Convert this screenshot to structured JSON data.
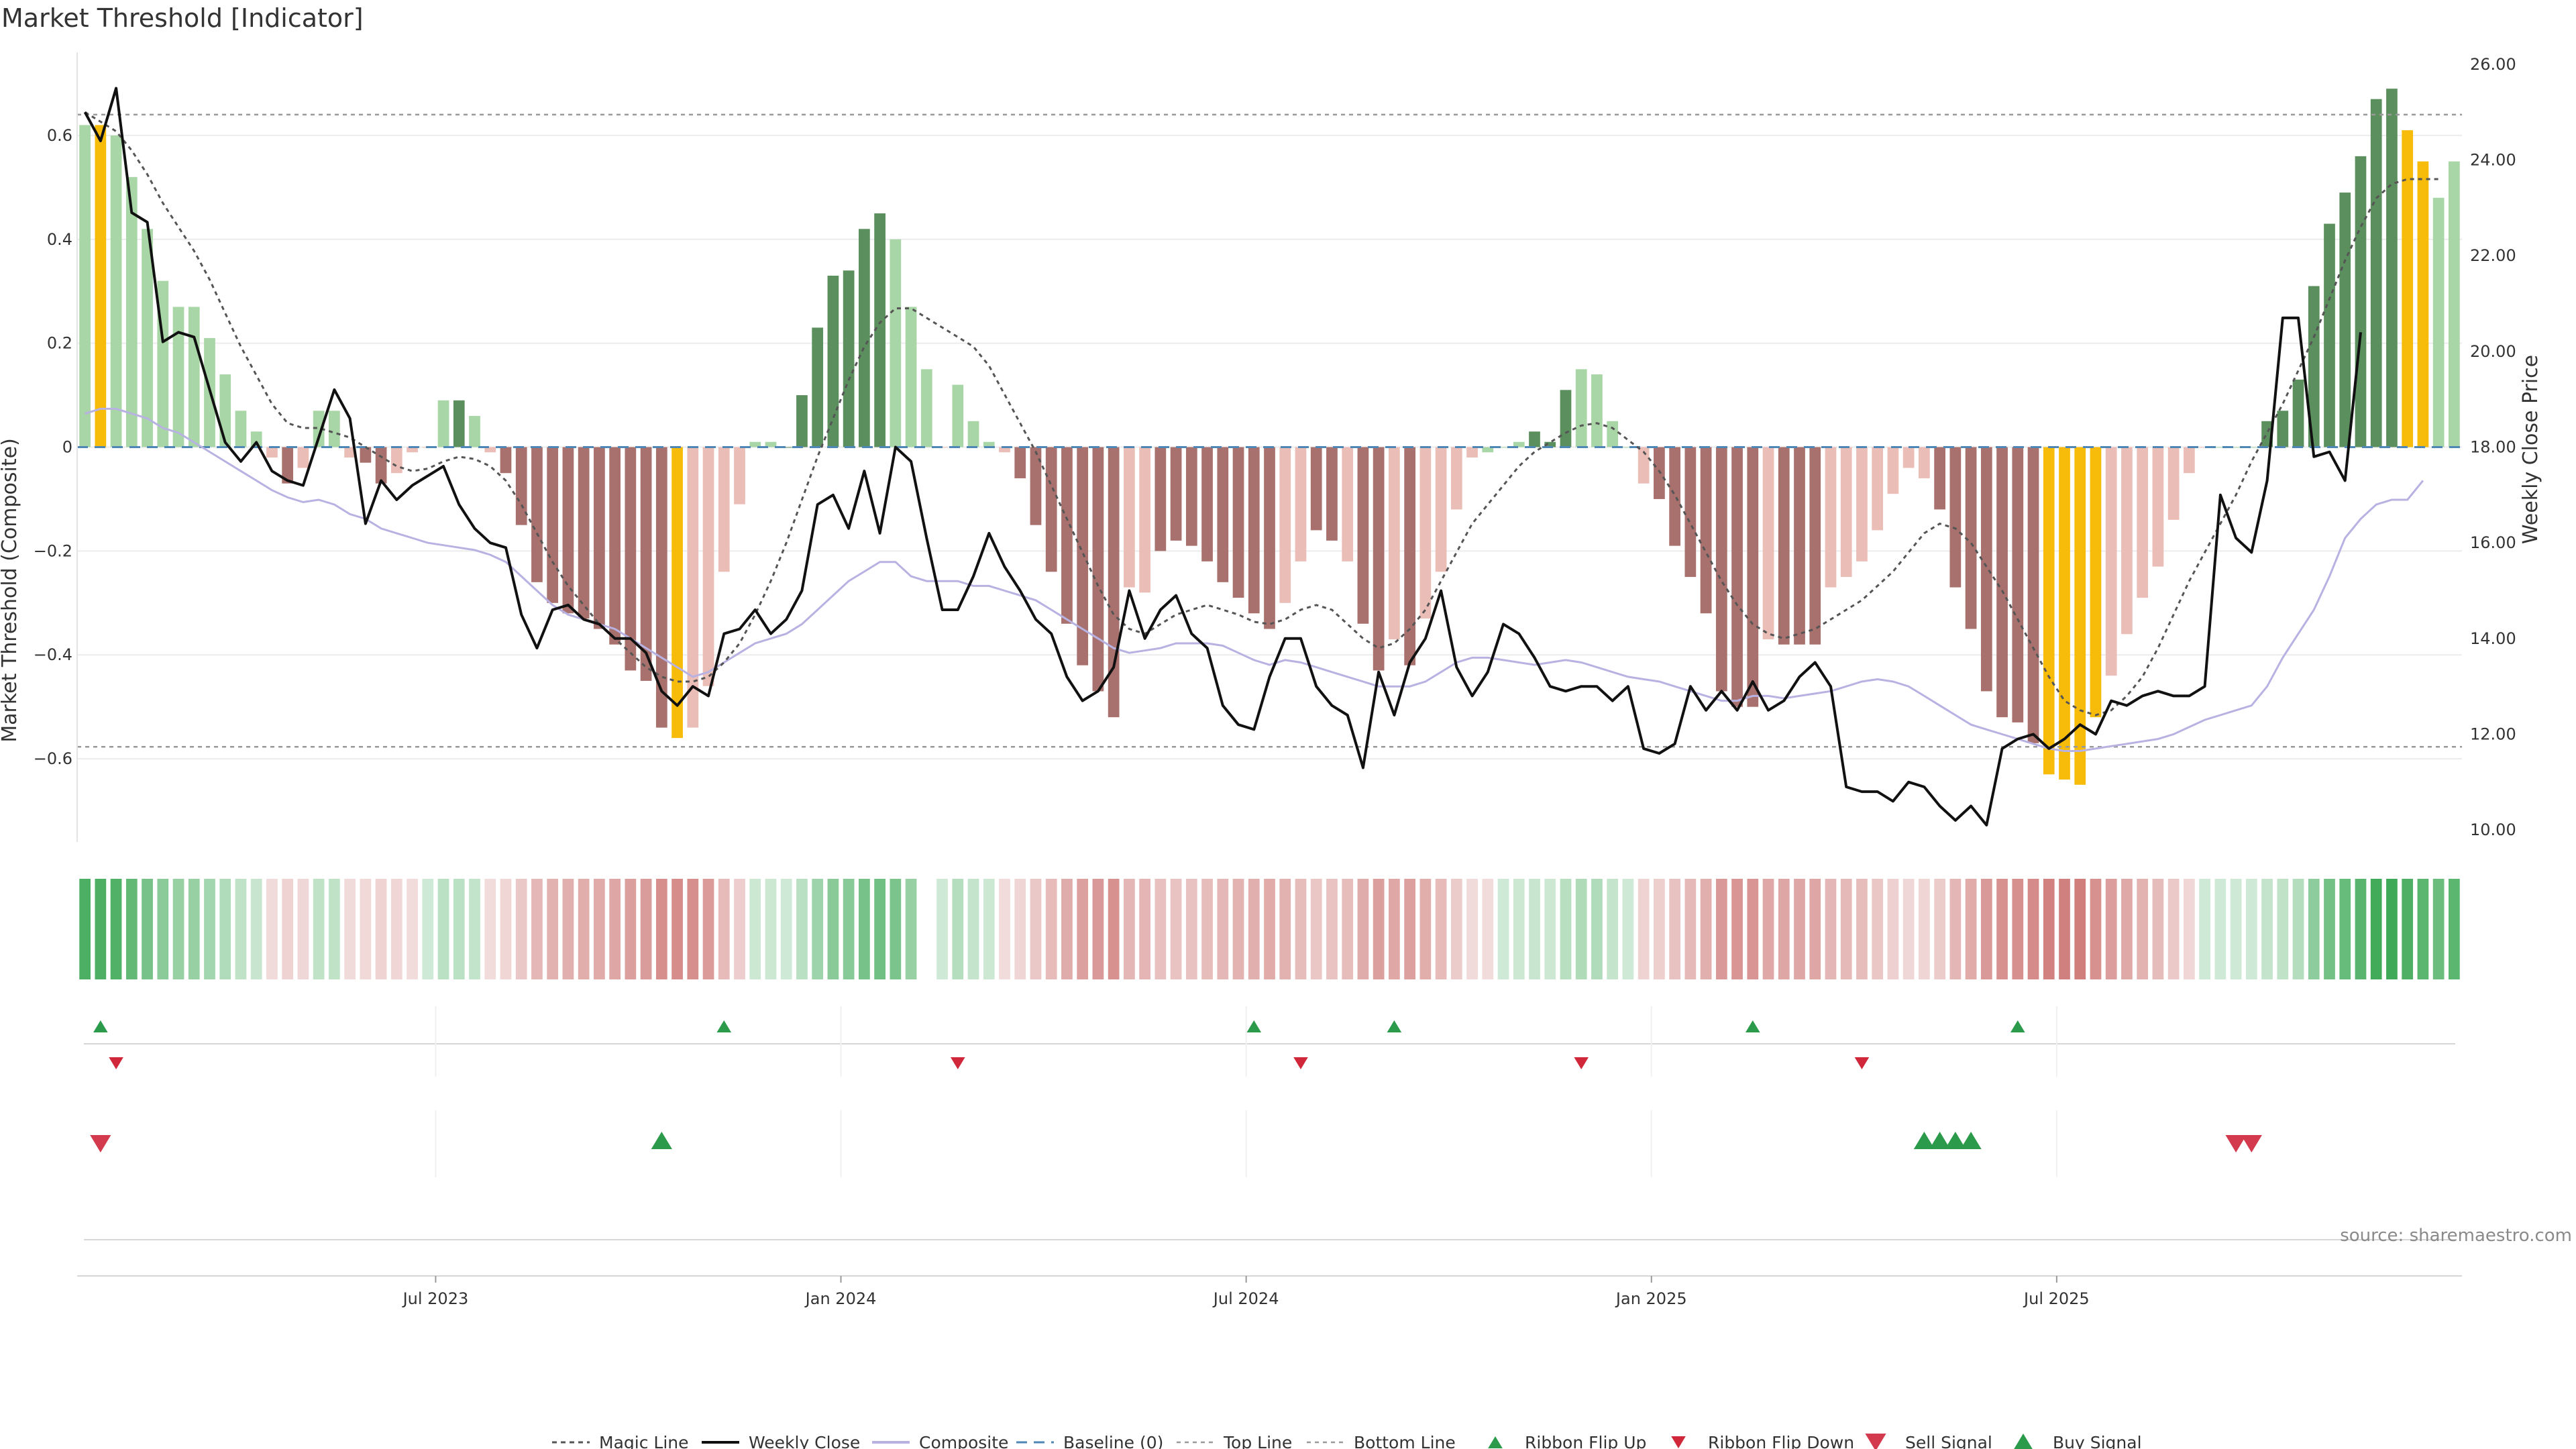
{
  "title": "Market Threshold [Indicator]",
  "source": "source: sharemaestro.com",
  "chart_data": {
    "type": "bar",
    "y_left_label": "Market Threshold (Composite)",
    "y_right_label": "Weekly Close Price",
    "y_left_ticks": [
      "0.6",
      "0.4",
      "0.2",
      "0",
      "−0.2",
      "−0.4",
      "−0.6"
    ],
    "y_right_ticks": [
      "26.00",
      "24.00",
      "22.00",
      "20.00",
      "18.00",
      "16.00",
      "14.00",
      "12.00",
      "10.00"
    ],
    "x_ticks": [
      "Jul 2023",
      "Jan 2024",
      "Jul 2024",
      "Jan 2025",
      "Jul 2025"
    ],
    "ylim_left": [
      -0.76,
      0.76
    ],
    "ylim_right": [
      9.75,
      26.25
    ],
    "top_line": 0.64,
    "bottom_line": -0.577,
    "baseline": 0,
    "colors": {
      "strong_up": "#5b8f5d",
      "weak_up": "#a9d6a6",
      "strong_down": "#a8716d",
      "weak_down": "#ebbdb7",
      "extreme": "#f7bb0a",
      "close_line": "#111111",
      "composite_line": "#b7b2e2",
      "magic_line": "#555555",
      "baseline": "#4e86b5",
      "ribbon_up": "#2b9a4a",
      "ribbon_down": "#d0283a",
      "buy": "#2b9a4a",
      "sell": "#d43a4d"
    },
    "composite": [
      0.62,
      0.62,
      0.6,
      0.52,
      0.42,
      0.32,
      0.27,
      0.27,
      0.21,
      0.14,
      0.07,
      0.03,
      -0.02,
      -0.07,
      -0.04,
      0.07,
      0.07,
      -0.02,
      -0.03,
      -0.07,
      -0.05,
      -0.01,
      0.0,
      0.09,
      0.09,
      0.06,
      -0.01,
      -0.05,
      -0.15,
      -0.26,
      -0.3,
      -0.32,
      -0.33,
      -0.35,
      -0.38,
      -0.43,
      -0.45,
      -0.54,
      -0.56,
      -0.54,
      -0.46,
      -0.24,
      -0.11,
      0.01,
      0.01,
      0.0,
      0.1,
      0.23,
      0.33,
      0.34,
      0.42,
      0.45,
      0.4,
      0.27,
      0.15,
      0.0,
      0.12,
      0.05,
      0.01,
      -0.01,
      -0.06,
      -0.15,
      -0.24,
      -0.34,
      -0.42,
      -0.47,
      -0.52,
      -0.27,
      -0.28,
      -0.2,
      -0.18,
      -0.19,
      -0.22,
      -0.26,
      -0.29,
      -0.32,
      -0.35,
      -0.3,
      -0.22,
      -0.16,
      -0.18,
      -0.22,
      -0.34,
      -0.43,
      -0.37,
      -0.42,
      -0.33,
      -0.24,
      -0.12,
      -0.02,
      -0.01,
      0.0,
      0.01,
      0.03,
      0.01,
      0.11,
      0.15,
      0.14,
      0.05,
      0.0,
      -0.07,
      -0.1,
      -0.19,
      -0.25,
      -0.32,
      -0.47,
      -0.5,
      -0.5,
      -0.37,
      -0.38,
      -0.38,
      -0.38,
      -0.27,
      -0.25,
      -0.22,
      -0.16,
      -0.09,
      -0.04,
      -0.06,
      -0.12,
      -0.27,
      -0.35,
      -0.47,
      -0.52,
      -0.53,
      -0.57,
      -0.63,
      -0.64,
      -0.65,
      -0.52,
      -0.44,
      -0.36,
      -0.29,
      -0.23,
      -0.14,
      -0.05,
      0.0,
      0.0,
      0.0,
      0.0,
      0.05,
      0.07,
      0.13,
      0.31,
      0.43,
      0.49,
      0.56,
      0.67,
      0.69,
      0.61,
      0.55,
      0.48,
      0.55
    ],
    "bar_colors": [
      "wu",
      "ex",
      "wu",
      "wu",
      "wu",
      "wu",
      "wu",
      "wu",
      "wu",
      "wu",
      "wu",
      "wu",
      "wd",
      "sd",
      "wd",
      "wu",
      "wu",
      "wd",
      "sd",
      "sd",
      "wd",
      "wd",
      "wd",
      "wu",
      "su",
      "wu",
      "wd",
      "sd",
      "sd",
      "sd",
      "sd",
      "sd",
      "sd",
      "sd",
      "sd",
      "sd",
      "sd",
      "sd",
      "ex",
      "wd",
      "wd",
      "wd",
      "wd",
      "wu",
      "wu",
      "su",
      "su",
      "su",
      "su",
      "su",
      "su",
      "su",
      "wu",
      "wu",
      "wu",
      "wd",
      "wu",
      "wu",
      "wu",
      "wd",
      "sd",
      "sd",
      "sd",
      "sd",
      "sd",
      "sd",
      "sd",
      "wd",
      "wd",
      "sd",
      "sd",
      "sd",
      "sd",
      "sd",
      "sd",
      "sd",
      "sd",
      "wd",
      "wd",
      "sd",
      "sd",
      "wd",
      "sd",
      "sd",
      "wd",
      "sd",
      "wd",
      "wd",
      "wd",
      "wd",
      "wu",
      "wu",
      "wu",
      "su",
      "su",
      "su",
      "wu",
      "wu",
      "wu",
      "wu",
      "wd",
      "sd",
      "sd",
      "sd",
      "sd",
      "sd",
      "sd",
      "sd",
      "wd",
      "sd",
      "sd",
      "sd",
      "wd",
      "wd",
      "wd",
      "wd",
      "wd",
      "wd",
      "wd",
      "sd",
      "sd",
      "sd",
      "sd",
      "sd",
      "sd",
      "sd",
      "ex",
      "ex",
      "ex",
      "ex",
      "wd",
      "wd",
      "wd",
      "wd",
      "wd",
      "wd",
      "wd",
      "wu",
      "wu",
      "wu",
      "su",
      "su",
      "su",
      "su",
      "su",
      "su",
      "su",
      "su",
      "su",
      "ex",
      "ex",
      "wu",
      "wu",
      "wu",
      "su"
    ],
    "weekly_close": [
      25.0,
      24.4,
      25.5,
      22.9,
      22.7,
      20.2,
      20.4,
      20.3,
      19.2,
      18.1,
      17.7,
      18.1,
      17.5,
      17.3,
      17.2,
      18.2,
      19.2,
      18.6,
      16.4,
      17.3,
      16.9,
      17.2,
      17.4,
      17.6,
      16.8,
      16.3,
      16.0,
      15.9,
      14.5,
      13.8,
      14.6,
      14.7,
      14.4,
      14.3,
      14.0,
      14.0,
      13.7,
      12.9,
      12.6,
      13.0,
      12.8,
      14.1,
      14.2,
      14.6,
      14.1,
      14.4,
      15.0,
      16.8,
      17.0,
      16.3,
      17.5,
      16.2,
      18.0,
      17.7,
      16.1,
      14.6,
      14.6,
      15.3,
      16.2,
      15.5,
      15.0,
      14.4,
      14.1,
      13.2,
      12.7,
      12.9,
      13.4,
      15.0,
      14.0,
      14.6,
      14.9,
      14.1,
      13.8,
      12.6,
      12.2,
      12.1,
      13.2,
      14.0,
      14.0,
      13.0,
      12.6,
      12.4,
      11.3,
      13.3,
      12.4,
      13.5,
      14.0,
      15.0,
      13.4,
      12.8,
      13.3,
      14.3,
      14.1,
      13.6,
      13.0,
      12.9,
      13.0,
      13.0,
      12.7,
      13.0,
      11.7,
      11.6,
      11.8,
      13.0,
      12.5,
      12.9,
      12.5,
      13.1,
      12.5,
      12.7,
      13.2,
      13.5,
      13.0,
      10.9,
      10.8,
      10.8,
      10.6,
      11.0,
      10.9,
      10.5,
      10.2,
      10.5,
      10.1,
      11.7,
      11.9,
      12.0,
      11.7,
      11.9,
      12.2,
      12.0,
      12.7,
      12.6,
      12.8,
      12.9,
      12.8,
      12.8,
      13.0,
      17.0,
      16.1,
      15.8,
      17.3,
      20.7,
      20.7,
      17.8,
      17.9,
      17.3,
      20.4
    ],
    "composite_line": [
      18.7,
      18.8,
      18.8,
      18.7,
      18.6,
      18.4,
      18.3,
      18.1,
      17.9,
      17.7,
      17.5,
      17.3,
      17.1,
      16.95,
      16.85,
      16.9,
      16.8,
      16.6,
      16.5,
      16.3,
      16.2,
      16.1,
      16.0,
      15.95,
      15.9,
      15.85,
      15.75,
      15.6,
      15.3,
      15.0,
      14.7,
      14.5,
      14.4,
      14.3,
      14.2,
      14.0,
      13.8,
      13.6,
      13.4,
      13.2,
      13.3,
      13.5,
      13.7,
      13.9,
      14.0,
      14.1,
      14.3,
      14.6,
      14.9,
      15.2,
      15.4,
      15.6,
      15.6,
      15.3,
      15.2,
      15.2,
      15.2,
      15.1,
      15.1,
      15.0,
      14.9,
      14.8,
      14.6,
      14.4,
      14.2,
      14.0,
      13.8,
      13.7,
      13.75,
      13.8,
      13.9,
      13.9,
      13.9,
      13.85,
      13.7,
      13.55,
      13.45,
      13.55,
      13.5,
      13.4,
      13.3,
      13.2,
      13.1,
      13.0,
      13.0,
      13.0,
      13.1,
      13.3,
      13.5,
      13.6,
      13.6,
      13.55,
      13.5,
      13.45,
      13.5,
      13.55,
      13.5,
      13.4,
      13.3,
      13.2,
      13.15,
      13.1,
      13.0,
      12.9,
      12.8,
      12.7,
      12.7,
      12.8,
      12.8,
      12.75,
      12.8,
      12.85,
      12.9,
      13.0,
      13.1,
      13.15,
      13.1,
      13.0,
      12.8,
      12.6,
      12.4,
      12.2,
      12.1,
      12.0,
      11.9,
      11.8,
      11.7,
      11.65,
      11.65,
      11.7,
      11.75,
      11.8,
      11.85,
      11.9,
      12.0,
      12.15,
      12.3,
      12.4,
      12.5,
      12.6,
      13.0,
      13.6,
      14.1,
      14.6,
      15.3,
      16.1,
      16.5,
      16.8,
      16.9,
      16.9,
      17.3
    ],
    "magic_line": [
      25.0,
      24.8,
      24.6,
      24.2,
      23.7,
      23.1,
      22.6,
      22.1,
      21.5,
      20.8,
      20.1,
      19.5,
      18.9,
      18.5,
      18.4,
      18.4,
      18.3,
      18.2,
      18.0,
      17.8,
      17.6,
      17.5,
      17.55,
      17.7,
      17.8,
      17.75,
      17.6,
      17.3,
      16.8,
      16.2,
      15.6,
      15.1,
      14.7,
      14.3,
      14.0,
      13.7,
      13.4,
      13.2,
      13.1,
      13.1,
      13.2,
      13.5,
      13.9,
      14.5,
      15.2,
      16.0,
      16.9,
      17.8,
      18.6,
      19.4,
      20.1,
      20.6,
      20.9,
      20.9,
      20.7,
      20.5,
      20.3,
      20.1,
      19.7,
      19.1,
      18.5,
      17.9,
      17.2,
      16.5,
      15.8,
      15.1,
      14.5,
      14.2,
      14.1,
      14.3,
      14.5,
      14.6,
      14.7,
      14.6,
      14.5,
      14.35,
      14.3,
      14.4,
      14.6,
      14.7,
      14.6,
      14.3,
      14.0,
      13.8,
      13.9,
      14.2,
      14.6,
      15.2,
      15.8,
      16.4,
      16.8,
      17.2,
      17.6,
      17.9,
      18.1,
      18.3,
      18.45,
      18.5,
      18.4,
      18.15,
      17.9,
      17.5,
      17.0,
      16.4,
      15.8,
      15.2,
      14.7,
      14.3,
      14.1,
      14.0,
      14.1,
      14.2,
      14.4,
      14.6,
      14.8,
      15.1,
      15.4,
      15.8,
      16.2,
      16.4,
      16.3,
      16.0,
      15.5,
      15.0,
      14.4,
      13.8,
      13.2,
      12.7,
      12.5,
      12.4,
      12.5,
      12.8,
      13.2,
      13.8,
      14.5,
      15.2,
      15.8,
      16.4,
      17.0,
      17.7,
      18.3,
      18.9,
      19.6,
      20.3,
      21.1,
      21.9,
      22.6,
      23.2,
      23.5,
      23.6,
      23.6,
      23.6
    ],
    "ribbon_flip_up": [
      1,
      41,
      75,
      84,
      107,
      124
    ],
    "ribbon_flip_down": [
      2,
      56,
      78,
      96,
      114
    ],
    "sell_signals": [
      1,
      138,
      139
    ],
    "buy_signals": [
      37,
      118,
      119,
      120,
      121
    ],
    "series": [
      {
        "name": "Magic Line"
      },
      {
        "name": "Weekly Close"
      },
      {
        "name": "Composite"
      },
      {
        "name": "Baseline (0)"
      },
      {
        "name": "Top Line"
      },
      {
        "name": "Bottom Line"
      },
      {
        "name": "Ribbon Flip Up"
      },
      {
        "name": "Ribbon Flip Down"
      },
      {
        "name": "Sell Signal"
      },
      {
        "name": "Buy Signal"
      }
    ]
  }
}
